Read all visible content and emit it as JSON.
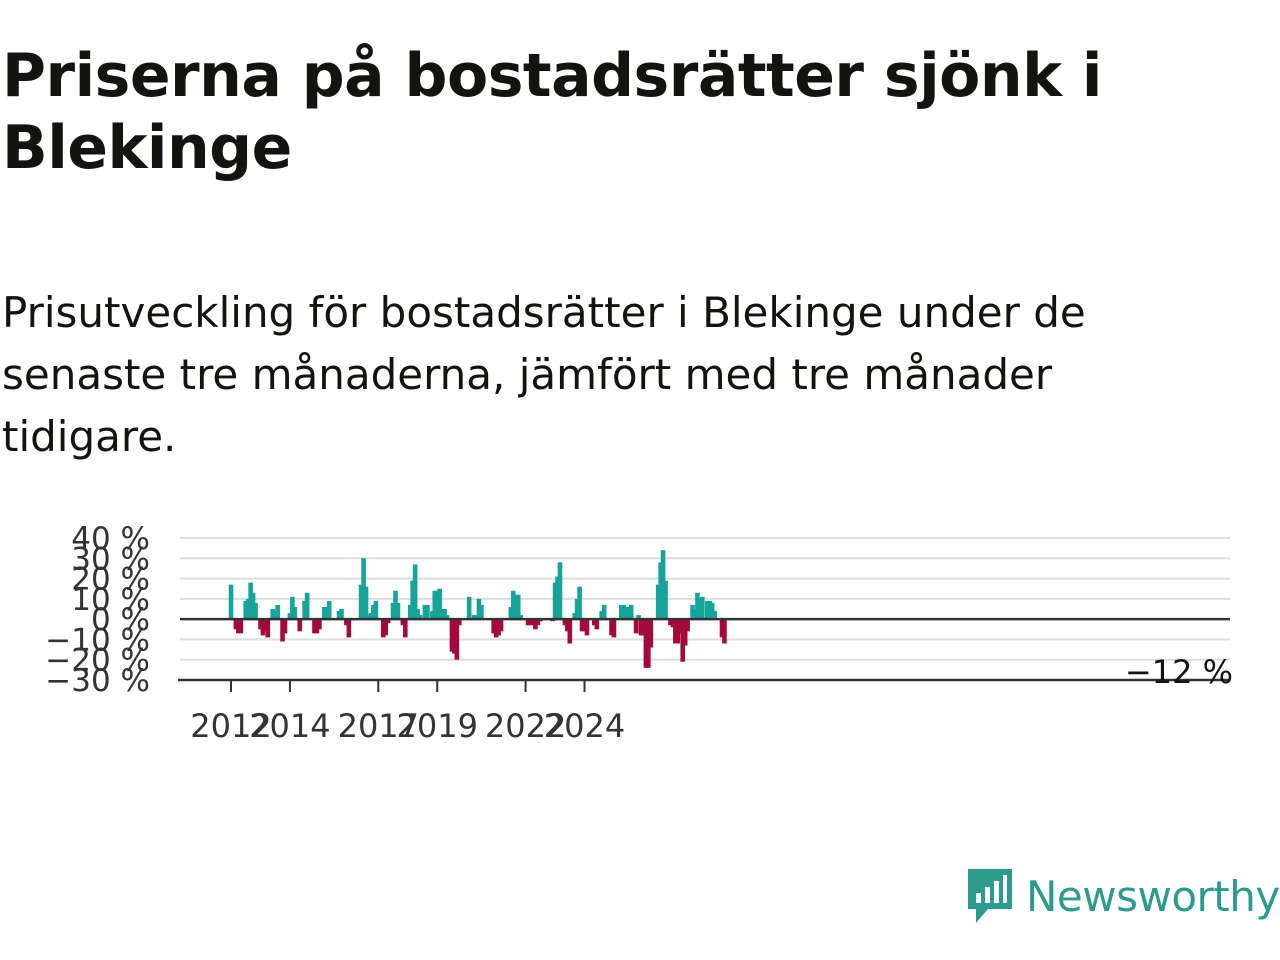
{
  "title": "Priserna på bostadsrätter sjönk i Blekinge",
  "subtitle": "Prisutveckling för bostadsrätter i Blekinge under de senaste tre månaderna, jämfört med tre månader tidigare.",
  "brand": {
    "name": "Newsworthy",
    "color": "#2d9a8f",
    "icon": "newsworthy-logo-icon"
  },
  "colors": {
    "positive": "#16a39a",
    "negative": "#a5093b",
    "grid": "#dddddd",
    "axis": "#333333"
  },
  "chart_data": {
    "type": "bar",
    "x_unit": "month",
    "x_start": "2012-01",
    "ylim": [
      -30,
      40
    ],
    "ytick_values": [
      40,
      30,
      20,
      10,
      0,
      -10,
      -20,
      -30
    ],
    "ytick_labels": [
      "40 %",
      "30 %",
      "20 %",
      "10 %",
      "0 %",
      "−10 %",
      "−20 %",
      "−30 %"
    ],
    "xtick_labels": [
      "2012",
      "2014",
      "2017",
      "2019",
      "2022",
      "2024"
    ],
    "xtick_months": [
      "2012-01",
      "2014-01",
      "2017-01",
      "2019-01",
      "2022-01",
      "2024-01"
    ],
    "end_label": "−12 %",
    "values": [
      17,
      0,
      -5,
      -7,
      -7,
      0,
      9,
      10,
      18,
      13,
      8,
      0,
      -5,
      -8,
      -6,
      -9,
      0,
      5,
      4,
      7,
      0,
      -11,
      -7,
      0,
      3,
      11,
      6,
      0,
      -6,
      0,
      9,
      13,
      0,
      0,
      -7,
      -7,
      -5,
      0,
      6,
      6,
      9,
      0,
      0,
      0,
      4,
      5,
      0,
      -3,
      -9,
      0,
      0,
      0,
      0,
      17,
      30,
      16,
      2,
      3,
      7,
      9,
      0,
      0,
      -9,
      -8,
      -2,
      0,
      8,
      14,
      8,
      0,
      -3,
      -9,
      0,
      7,
      19,
      27,
      5,
      2,
      0,
      7,
      7,
      0,
      4,
      14,
      14,
      15,
      5,
      5,
      2,
      0,
      -16,
      -17,
      -20,
      -3,
      0,
      0,
      0,
      11,
      0,
      2,
      2,
      10,
      7,
      0,
      0,
      0,
      0,
      -7,
      -9,
      -8,
      -6,
      0,
      0,
      0,
      6,
      14,
      12,
      12,
      2,
      0,
      0,
      -3,
      -3,
      -3,
      -5,
      -3,
      -1,
      0,
      0,
      0,
      0,
      -1,
      18,
      21,
      28,
      0,
      -3,
      -6,
      -12,
      0,
      3,
      10,
      16,
      -6,
      -6,
      -8,
      0,
      0,
      -3,
      -5,
      0,
      4,
      7,
      0,
      0,
      -8,
      -9,
      0,
      0,
      7,
      7,
      6,
      6,
      7,
      0,
      -7,
      2,
      -8,
      -8,
      -24,
      -24,
      -14,
      0,
      0,
      17,
      28,
      34,
      19,
      0,
      -3,
      -4,
      -12,
      -12,
      -7,
      -21,
      -13,
      -6,
      0,
      7,
      5,
      13,
      10,
      11,
      0,
      9,
      9,
      8,
      4,
      0,
      0,
      -9,
      -12
    ]
  }
}
